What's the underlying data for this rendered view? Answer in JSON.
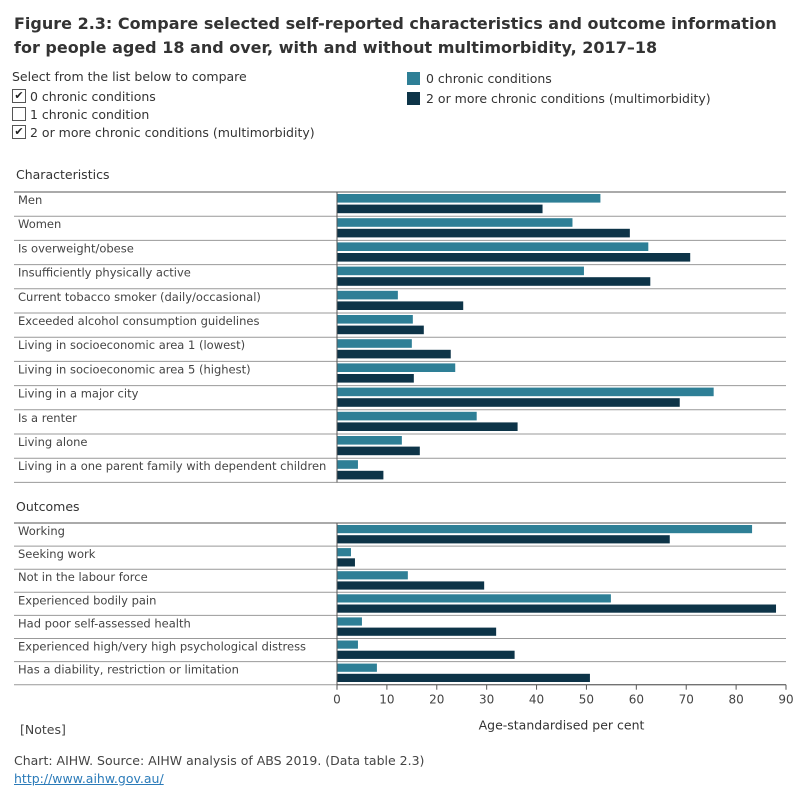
{
  "title": "Figure 2.3: Compare selected self-reported characteristics and outcome information for people aged 18 and over, with and without multimorbidity, 2017–18",
  "filter": {
    "title": "Select from the list below to compare",
    "options": [
      {
        "label": "0 chronic conditions",
        "checked": true
      },
      {
        "label": "1 chronic condition",
        "checked": false
      },
      {
        "label": "2 or more chronic conditions (multimorbidity)",
        "checked": true
      }
    ]
  },
  "legend": [
    {
      "label": "0 chronic conditions",
      "color": "#2e7f96"
    },
    {
      "label": "2 or more chronic conditions (multimorbidity)",
      "color": "#0d3448"
    }
  ],
  "notes_label": "[Notes]",
  "source": "Chart: AIHW. Source: AIHW analysis of ABS 2019. (Data table 2.3)",
  "link": "http://www.aihw.gov.au/",
  "chart_data": {
    "type": "bar",
    "orientation": "horizontal",
    "xlabel": "Age-standardised per cent",
    "xlim": [
      0,
      90
    ],
    "xticks": [
      0,
      10,
      20,
      30,
      40,
      50,
      60,
      70,
      80,
      90
    ],
    "series_names": [
      "0 chronic conditions",
      "2 or more chronic conditions (multimorbidity)"
    ],
    "colors": [
      "#2e7f96",
      "#0d3448"
    ],
    "sections": [
      {
        "name": "Characteristics",
        "categories": [
          {
            "label": "Men",
            "values": [
              52.8,
              41.2
            ]
          },
          {
            "label": "Women",
            "values": [
              47.2,
              58.7
            ]
          },
          {
            "label": "Is overweight/obese",
            "values": [
              62.4,
              70.8
            ]
          },
          {
            "label": "Insufficiently physically active",
            "values": [
              49.5,
              62.8
            ]
          },
          {
            "label": "Current tobacco smoker (daily/occasional)",
            "values": [
              12.2,
              25.3
            ]
          },
          {
            "label": "Exceeded alcohol consumption guidelines",
            "values": [
              15.2,
              17.4
            ]
          },
          {
            "label": "Living in socioeconomic area 1 (lowest)",
            "values": [
              15.0,
              22.8
            ]
          },
          {
            "label": "Living in socioeconomic area 5 (highest)",
            "values": [
              23.7,
              15.4
            ]
          },
          {
            "label": "Living in a major city",
            "values": [
              75.5,
              68.7
            ]
          },
          {
            "label": "Is a renter",
            "values": [
              28.0,
              36.2
            ]
          },
          {
            "label": "Living alone",
            "values": [
              13.0,
              16.6
            ]
          },
          {
            "label": "Living in a one parent family with dependent children",
            "values": [
              4.2,
              9.3
            ]
          }
        ]
      },
      {
        "name": "Outcomes",
        "categories": [
          {
            "label": "Working",
            "values": [
              83.2,
              66.7
            ]
          },
          {
            "label": "Seeking work",
            "values": [
              2.8,
              3.6
            ]
          },
          {
            "label": "Not in the labour force",
            "values": [
              14.2,
              29.5
            ]
          },
          {
            "label": "Experienced bodily pain",
            "values": [
              54.9,
              88.0
            ]
          },
          {
            "label": "Had poor self-assessed health",
            "values": [
              5.0,
              31.9
            ]
          },
          {
            "label": "Experienced high/very high psychological distress",
            "values": [
              4.2,
              35.6
            ]
          },
          {
            "label": "Has a diability, restriction or limitation",
            "values": [
              8.0,
              50.7
            ]
          }
        ]
      }
    ]
  }
}
